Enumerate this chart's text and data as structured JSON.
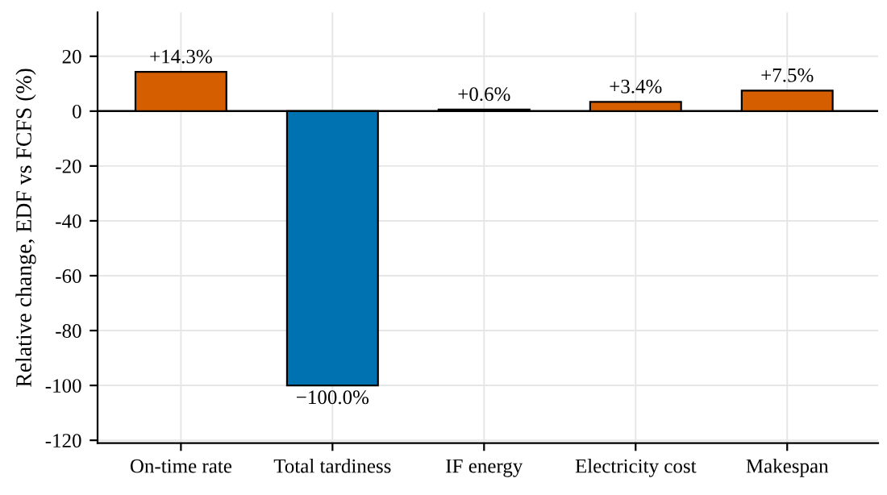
{
  "chart_data": {
    "type": "bar",
    "ylabel": "Relative change, EDF vs FCFS (%)",
    "categories": [
      "On-time rate",
      "Total tardiness",
      "IF energy",
      "Electricity cost",
      "Makespan"
    ],
    "values": [
      14.3,
      -100.0,
      0.6,
      3.4,
      7.5
    ],
    "colors": [
      "#d55e00",
      "#0072b2",
      "#d55e00",
      "#d55e00",
      "#d55e00"
    ],
    "value_labels": [
      "+14.3%",
      "−100.0%",
      "+0.6%",
      "+3.4%",
      "+7.5%"
    ],
    "ylim": [
      -121,
      36
    ],
    "yticks": [
      -120,
      -100,
      -80,
      -60,
      -40,
      -20,
      0,
      20
    ],
    "ref_lines": [
      {
        "axis": "y",
        "value": 0,
        "color": "#000000"
      }
    ],
    "grid": true
  }
}
